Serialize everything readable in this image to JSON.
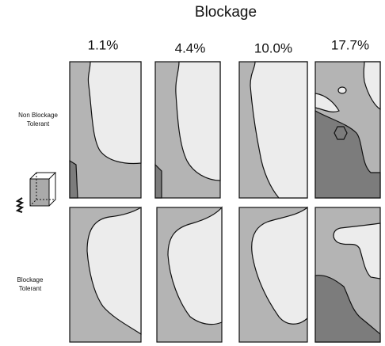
{
  "title": "Blockage",
  "columns": [
    "1.1%",
    "4.4%",
    "10.0%",
    "17.7%"
  ],
  "rows": [
    {
      "line1": "Non Blockage",
      "line2": "Tolerant"
    },
    {
      "line1": "Blockage",
      "line2": "Tolerant"
    }
  ]
}
